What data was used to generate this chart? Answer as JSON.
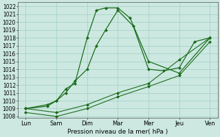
{
  "x_labels": [
    "Lun",
    "Sam",
    "Dim",
    "Mar",
    "Mer",
    "Jeu",
    "Ven"
  ],
  "x_ticks": [
    0,
    1,
    2,
    3,
    4,
    5,
    6
  ],
  "jagged_x": [
    0,
    0.7,
    1,
    1.3,
    1.6,
    2,
    2.3,
    2.6,
    3,
    3.4,
    4,
    5,
    6
  ],
  "jagged_y": [
    1009.0,
    1009.5,
    1010.0,
    1011.5,
    1012.2,
    1018.0,
    1021.5,
    1021.8,
    1021.8,
    1020.5,
    1015.0,
    1013.5,
    1018.0
  ],
  "smooth_x": [
    0,
    0.7,
    1,
    1.3,
    1.6,
    2,
    2.3,
    2.6,
    3,
    3.5,
    4,
    4.5,
    5,
    5.5,
    6
  ],
  "smooth_y": [
    1009.0,
    1009.3,
    1010.0,
    1011.0,
    1012.5,
    1014.0,
    1017.0,
    1019.0,
    1021.5,
    1019.5,
    1014.0,
    1013.8,
    1014.2,
    1017.5,
    1018.0
  ],
  "low1_x": [
    0,
    1,
    2,
    3,
    4,
    5,
    6
  ],
  "low1_y": [
    1009.0,
    1008.5,
    1009.5,
    1011.0,
    1012.2,
    1015.2,
    1018.0
  ],
  "low2_x": [
    0,
    1,
    2,
    3,
    4,
    5,
    6
  ],
  "low2_y": [
    1008.5,
    1008.0,
    1009.0,
    1010.5,
    1011.8,
    1013.2,
    1017.5
  ],
  "ylim": [
    1007.8,
    1022.5
  ],
  "yticks": [
    1008,
    1009,
    1010,
    1011,
    1012,
    1013,
    1014,
    1015,
    1016,
    1017,
    1018,
    1019,
    1020,
    1021,
    1022
  ],
  "line_color": "#1a6b1a",
  "bg_color": "#cce8e0",
  "grid_color": "#9ecfc4",
  "xlabel": "Pression niveau de la mer( hPa )"
}
